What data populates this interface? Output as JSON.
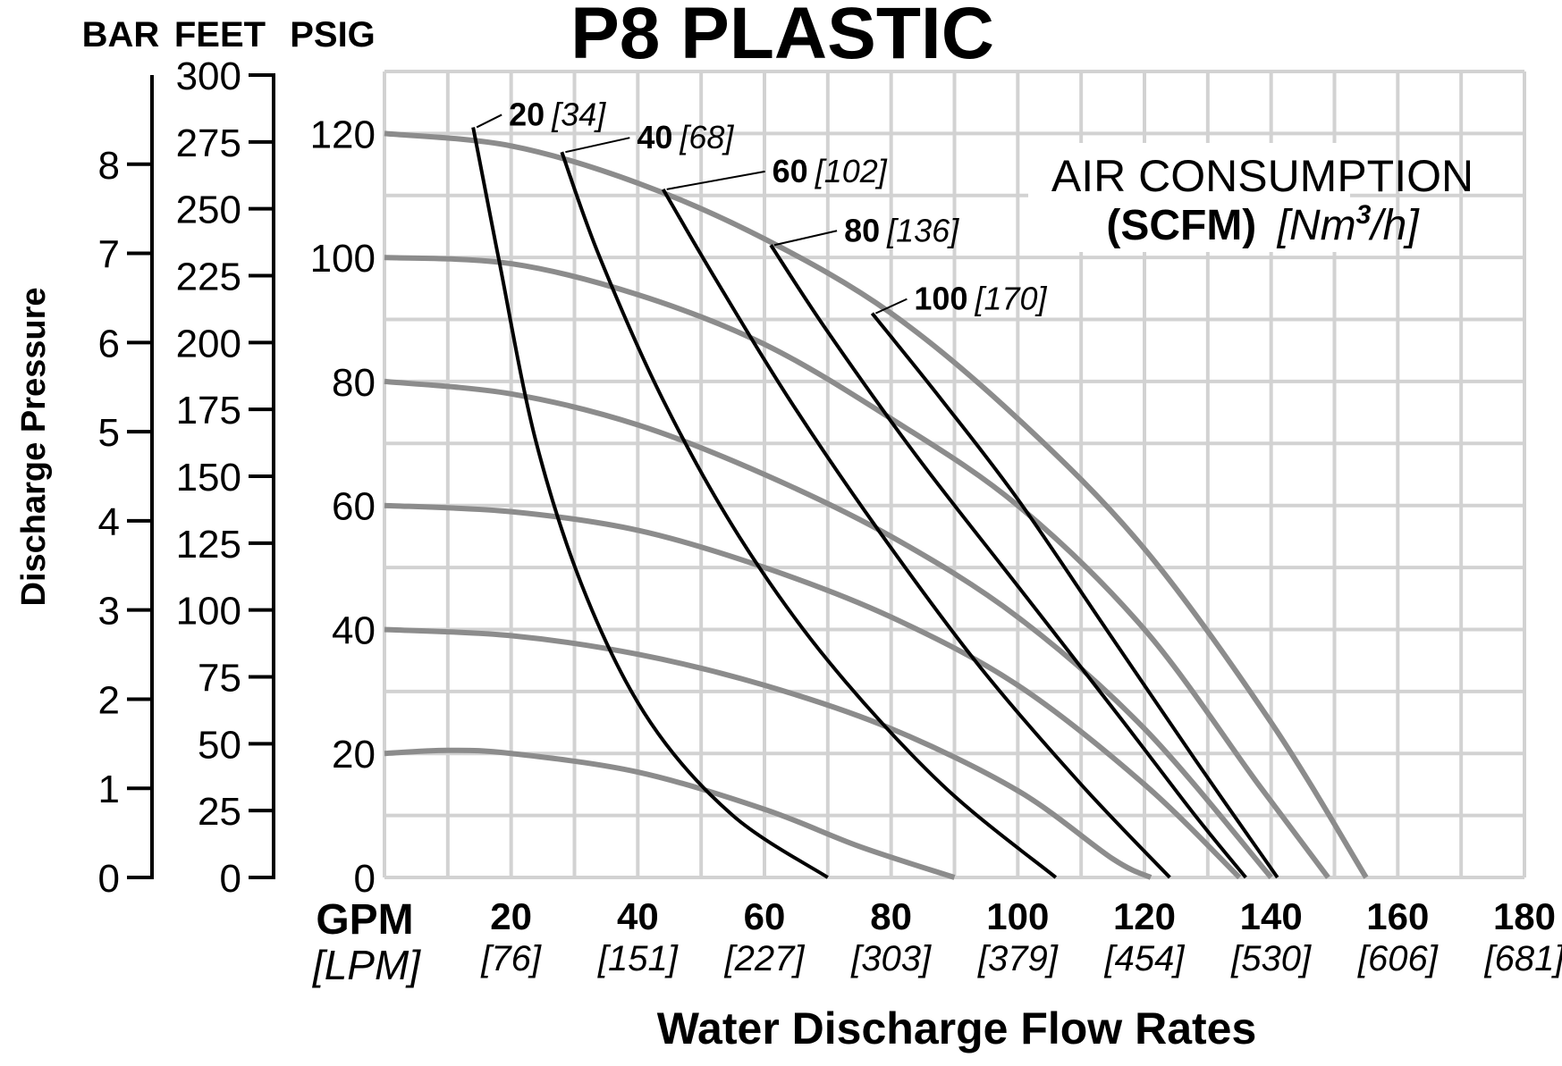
{
  "chart_data": {
    "type": "line",
    "title": "P8 PLASTIC",
    "xlabel": "Water Discharge Flow Rates",
    "ylabel": "Discharge Pressure",
    "x_unit_primary": "GPM",
    "x_unit_secondary": "[LPM]",
    "axis_headers": {
      "bar": "BAR",
      "feet": "FEET",
      "psig": "PSIG"
    },
    "xlim": [
      0,
      180
    ],
    "ylim": [
      0,
      130
    ],
    "grid": true,
    "x_ticks": [
      {
        "gpm": "20",
        "lpm": "[76]"
      },
      {
        "gpm": "40",
        "lpm": "[151]"
      },
      {
        "gpm": "60",
        "lpm": "[227]"
      },
      {
        "gpm": "80",
        "lpm": "[303]"
      },
      {
        "gpm": "100",
        "lpm": "[379]"
      },
      {
        "gpm": "120",
        "lpm": "[454]"
      },
      {
        "gpm": "140",
        "lpm": "[530]"
      },
      {
        "gpm": "160",
        "lpm": "[606]"
      },
      {
        "gpm": "180",
        "lpm": "[681]"
      }
    ],
    "x_tick_values": [
      20,
      40,
      60,
      80,
      100,
      120,
      140,
      160,
      180
    ],
    "psig_ticks": [
      "0",
      "20",
      "40",
      "60",
      "80",
      "100",
      "120"
    ],
    "psig_tick_values": [
      0,
      20,
      40,
      60,
      80,
      100,
      120
    ],
    "feet_ticks": [
      "0",
      "25",
      "50",
      "75",
      "100",
      "125",
      "150",
      "175",
      "200",
      "225",
      "250",
      "275",
      "300"
    ],
    "feet_tick_values": [
      0,
      25,
      50,
      75,
      100,
      125,
      150,
      175,
      200,
      225,
      250,
      275,
      300
    ],
    "bar_ticks": [
      "0",
      "1",
      "2",
      "3",
      "4",
      "5",
      "6",
      "7",
      "8"
    ],
    "bar_tick_values": [
      0,
      1,
      2,
      3,
      4,
      5,
      6,
      7,
      8
    ],
    "air_consumption_title": "AIR CONSUMPTION",
    "air_consumption_units_bold": "(SCFM)",
    "air_consumption_units_italic": "[Nm",
    "air_consumption_units_sup": "3",
    "air_consumption_units_tail": "/h]",
    "pressure_series": [
      {
        "name": "120 psig",
        "points": [
          [
            0,
            120
          ],
          [
            20,
            118
          ],
          [
            40,
            112
          ],
          [
            60,
            103
          ],
          [
            80,
            91
          ],
          [
            100,
            74
          ],
          [
            120,
            53
          ],
          [
            140,
            25
          ],
          [
            155,
            0
          ]
        ]
      },
      {
        "name": "100 psig",
        "points": [
          [
            0,
            100
          ],
          [
            20,
            99
          ],
          [
            40,
            94
          ],
          [
            60,
            86
          ],
          [
            80,
            74
          ],
          [
            100,
            60
          ],
          [
            120,
            40
          ],
          [
            138,
            15
          ],
          [
            149,
            0
          ]
        ]
      },
      {
        "name": "80 psig",
        "points": [
          [
            0,
            80
          ],
          [
            20,
            78
          ],
          [
            40,
            73
          ],
          [
            60,
            65
          ],
          [
            80,
            55
          ],
          [
            100,
            42
          ],
          [
            120,
            24
          ],
          [
            140,
            0
          ]
        ]
      },
      {
        "name": "60 psig",
        "points": [
          [
            0,
            60
          ],
          [
            20,
            59
          ],
          [
            40,
            56
          ],
          [
            60,
            50
          ],
          [
            80,
            42
          ],
          [
            100,
            31
          ],
          [
            120,
            15
          ],
          [
            135,
            0
          ]
        ]
      },
      {
        "name": "40 psig",
        "points": [
          [
            0,
            40
          ],
          [
            20,
            39
          ],
          [
            40,
            36
          ],
          [
            60,
            31
          ],
          [
            80,
            24
          ],
          [
            100,
            14
          ],
          [
            115,
            3
          ],
          [
            121,
            0
          ]
        ]
      },
      {
        "name": "20 psig",
        "points": [
          [
            0,
            20
          ],
          [
            10,
            20.5
          ],
          [
            20,
            20
          ],
          [
            40,
            17
          ],
          [
            60,
            11
          ],
          [
            75,
            5
          ],
          [
            90,
            0
          ]
        ]
      }
    ],
    "air_series": [
      {
        "label": "20",
        "label_metric": "[34]",
        "points": [
          [
            14,
            121
          ],
          [
            18,
            100
          ],
          [
            24,
            70
          ],
          [
            32,
            45
          ],
          [
            42,
            25
          ],
          [
            55,
            10
          ],
          [
            70,
            0
          ]
        ]
      },
      {
        "label": "40",
        "label_metric": "[68]",
        "points": [
          [
            28,
            117
          ],
          [
            34,
            100
          ],
          [
            44,
            77
          ],
          [
            56,
            55
          ],
          [
            70,
            35
          ],
          [
            88,
            15
          ],
          [
            106,
            0
          ]
        ]
      },
      {
        "label": "60",
        "label_metric": "[102]",
        "points": [
          [
            44,
            111
          ],
          [
            52,
            97
          ],
          [
            64,
            77
          ],
          [
            78,
            56
          ],
          [
            94,
            34
          ],
          [
            110,
            15
          ],
          [
            124,
            0
          ]
        ]
      },
      {
        "label": "80",
        "label_metric": "[136]",
        "points": [
          [
            61,
            102
          ],
          [
            70,
            88
          ],
          [
            84,
            68
          ],
          [
            100,
            47
          ],
          [
            116,
            26
          ],
          [
            128,
            10
          ],
          [
            136,
            0
          ]
        ]
      },
      {
        "label": "100",
        "label_metric": "[170]",
        "points": [
          [
            77,
            91
          ],
          [
            88,
            77
          ],
          [
            100,
            61
          ],
          [
            114,
            40
          ],
          [
            128,
            19
          ],
          [
            141,
            0
          ]
        ]
      }
    ]
  }
}
